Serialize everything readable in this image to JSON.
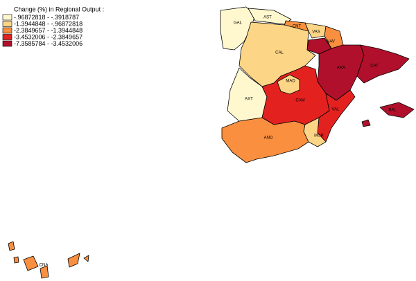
{
  "legend": {
    "title": "Change (%) in Regional Output :",
    "items": [
      {
        "label": "-.96872818 - -.3918787",
        "color": "#fff8cf"
      },
      {
        "label": "-1.3944848 - -.96872818",
        "color": "#fdd586"
      },
      {
        "label": "-2.3849657 - -1.3944848",
        "color": "#f98f3f"
      },
      {
        "label": "-3.4532006 - -2.3849657",
        "color": "#e3221f"
      },
      {
        "label": "-7.3585784 - -3.4532006",
        "color": "#b0102b"
      }
    ]
  },
  "regions": [
    {
      "label": "GAL",
      "color": "#fff8cf"
    },
    {
      "label": "AST",
      "color": "#fff8cf"
    },
    {
      "label": "CNT",
      "color": "#f98f3f"
    },
    {
      "label": "VAS",
      "color": "#fdd586"
    },
    {
      "label": "NAV",
      "color": "#f98f3f"
    },
    {
      "label": "CAL",
      "color": "#fdd586"
    },
    {
      "label": "ARA",
      "color": "#b0102b"
    },
    {
      "label": "CAT",
      "color": "#b0102b"
    },
    {
      "label": "AXT",
      "color": "#fff8cf"
    },
    {
      "label": "CAM",
      "color": "#e3221f"
    },
    {
      "label": "MAD",
      "color": "#fdd586"
    },
    {
      "label": "VAL",
      "color": "#e3221f"
    },
    {
      "label": "AND",
      "color": "#f98f3f"
    },
    {
      "label": "MUR",
      "color": "#fdd586"
    },
    {
      "label": "BAL",
      "color": "#b0102b"
    },
    {
      "label": "CNA",
      "color": "#f98f3f"
    }
  ],
  "unlabeled_region_color": "#b0102b"
}
